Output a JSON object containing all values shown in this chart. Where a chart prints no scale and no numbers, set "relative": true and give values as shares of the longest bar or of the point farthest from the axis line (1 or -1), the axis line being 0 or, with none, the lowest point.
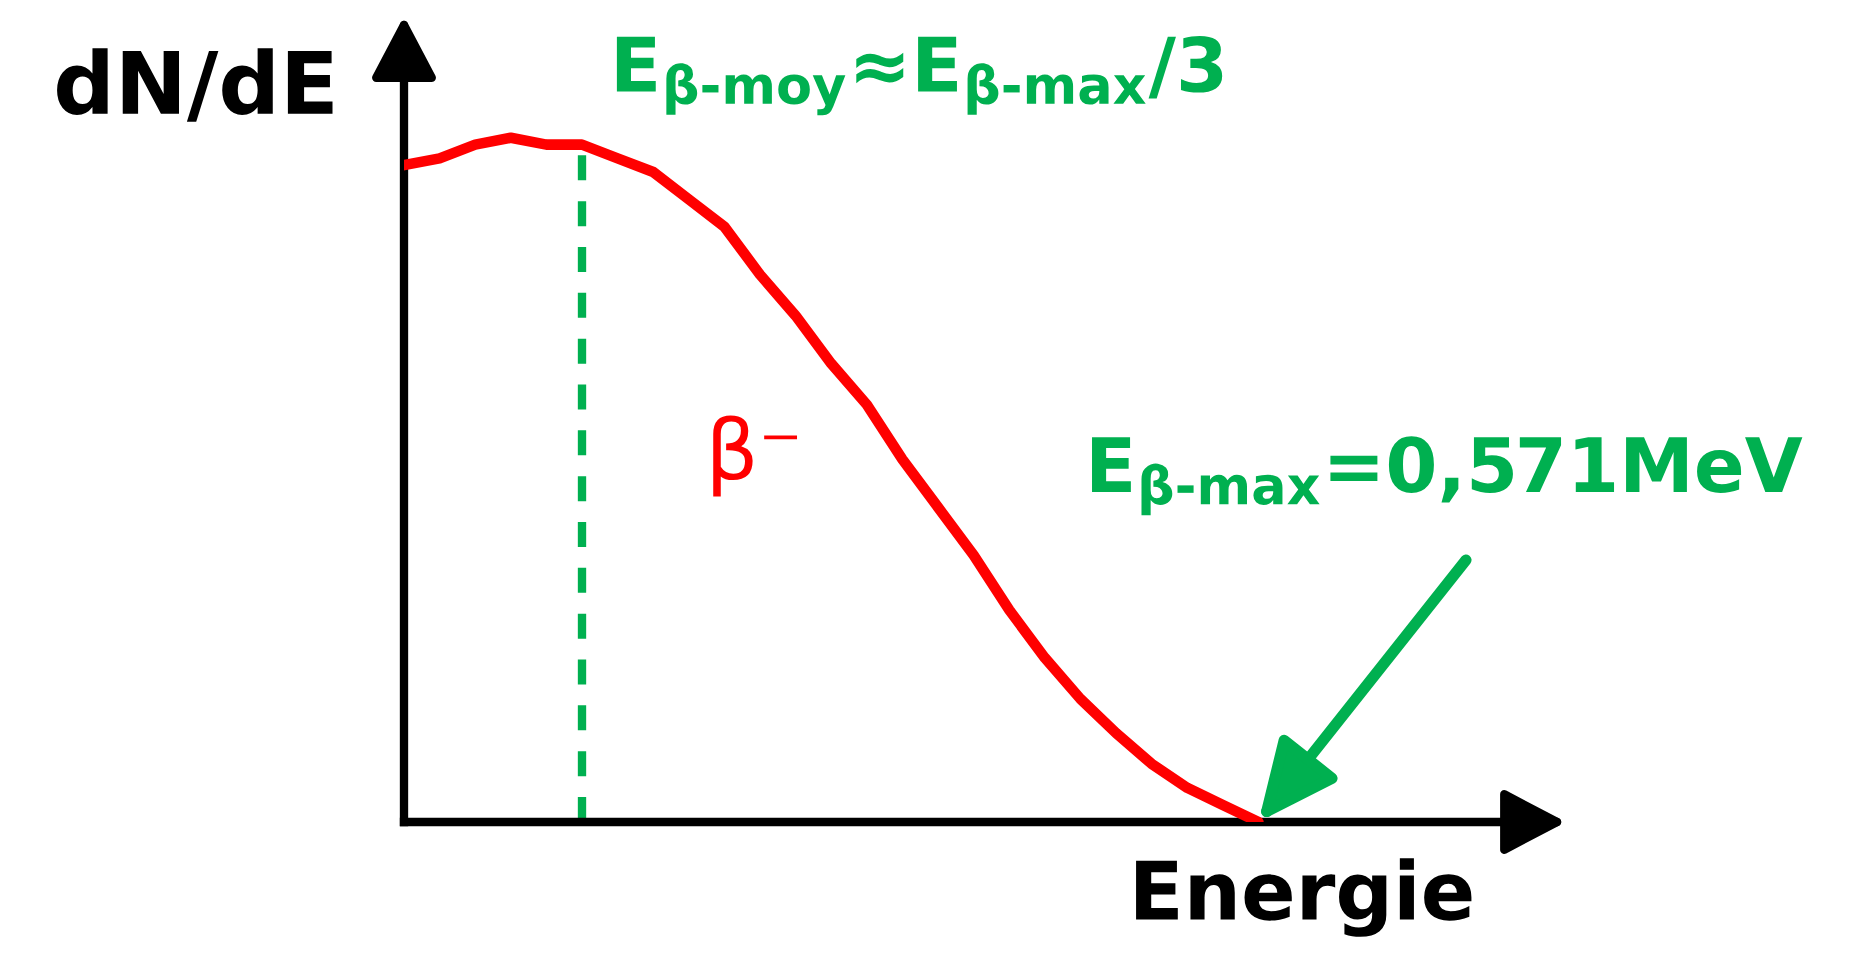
{
  "chart_data": {
    "type": "line",
    "relative": true,
    "xlabel": "Energie",
    "ylabel": "dN/dE",
    "categories": [
      null,
      null,
      null,
      null,
      null,
      null,
      null,
      null,
      null,
      null,
      null,
      null,
      null,
      null,
      null,
      null,
      null,
      null,
      null,
      null,
      null,
      null,
      null,
      null,
      null,
      null,
      null,
      null,
      null,
      null,
      null,
      null,
      null
    ],
    "series": [
      {
        "name": "β⁻",
        "color": "#ff0000",
        "values": [
          0.96,
          0.97,
          0.99,
          1.0,
          0.99,
          0.99,
          0.97,
          0.95,
          0.91,
          0.87,
          0.8,
          0.74,
          0.67,
          0.61,
          0.53,
          0.46,
          0.39,
          0.31,
          0.24,
          0.18,
          0.13,
          0.085,
          0.05,
          0.025,
          0,
          null,
          null,
          null,
          null,
          null,
          null,
          null,
          null
        ]
      }
    ],
    "annotations": [
      "E$_{β‐moy}$≈E$_{β‐max}$/3",
      "E$_{β‐max}$=0,571MeV"
    ]
  }
}
